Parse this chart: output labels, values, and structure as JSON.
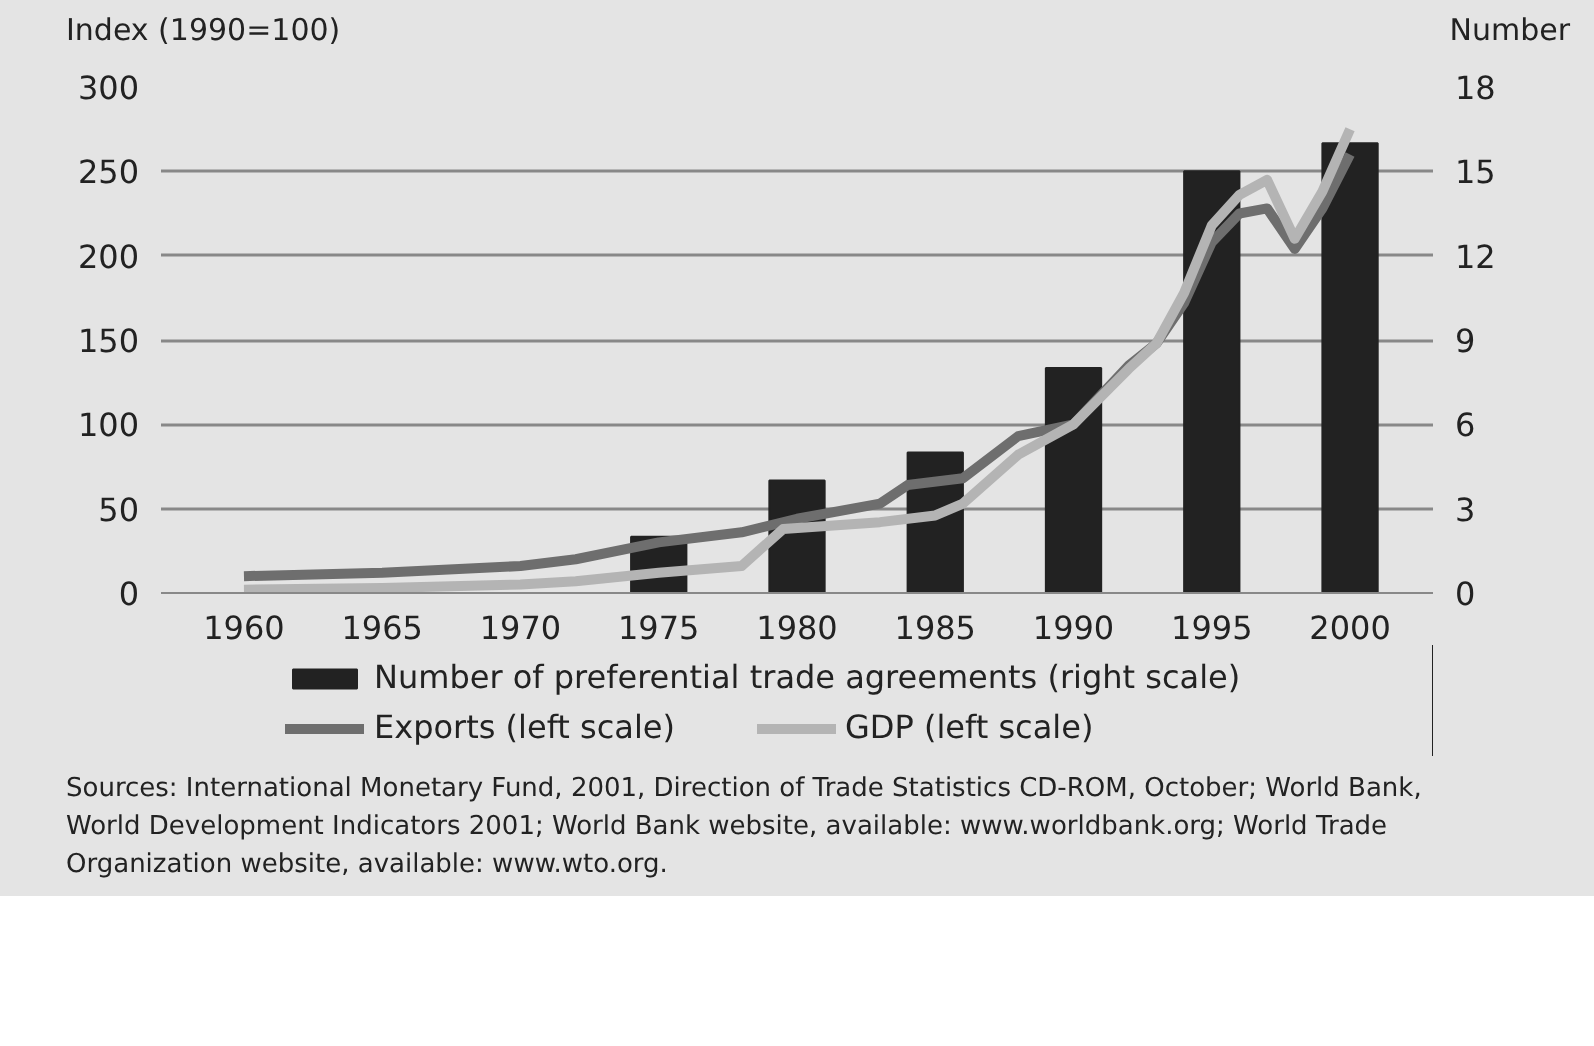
{
  "chart_data": {
    "type": "line",
    "ylabel": "Index (1990=100)",
    "y2label": "Number",
    "xlim": [
      1957,
      2003
    ],
    "xticks": [
      1960,
      1965,
      1970,
      1975,
      1980,
      1985,
      1990,
      1995,
      2000
    ],
    "ylim": [
      0,
      300
    ],
    "yticks": [
      0,
      50,
      100,
      150,
      200,
      250,
      300
    ],
    "y2lim": [
      0,
      18
    ],
    "y2ticks": [
      0,
      3,
      6,
      9,
      12,
      15,
      18
    ],
    "grid": "y",
    "legend": "bottom",
    "series": [
      {
        "name": "Number of preferential trade agreements (right scale)",
        "type": "bar",
        "axis": "y2",
        "color": "#222222",
        "x": [
          1975,
          1980,
          1985,
          1990,
          1995,
          2000
        ],
        "values": [
          2,
          4,
          5,
          8,
          15,
          16
        ]
      },
      {
        "name": "Exports (left scale)",
        "color": "#6e6e6e",
        "x": [
          1960,
          1965,
          1970,
          1972,
          1975,
          1978,
          1980,
          1983,
          1984,
          1986,
          1988,
          1990,
          1992,
          1993,
          1994,
          1995,
          1996,
          1997,
          1998,
          1999,
          2000
        ],
        "values": [
          10,
          12,
          16,
          20,
          30,
          36,
          44,
          53,
          64,
          68,
          93,
          100,
          135,
          148,
          172,
          208,
          225,
          228,
          204,
          228,
          260
        ]
      },
      {
        "name": "GDP (left scale)",
        "color": "#b4b4b4",
        "x": [
          1960,
          1965,
          1970,
          1972,
          1975,
          1978,
          1979.5,
          1983,
          1985,
          1986,
          1988,
          1990,
          1992,
          1993,
          1994,
          1995,
          1996,
          1997,
          1998,
          1999,
          2000
        ],
        "values": [
          2,
          3,
          5,
          7,
          12,
          16,
          38,
          42,
          46,
          53,
          82,
          100,
          133,
          148,
          178,
          218,
          236,
          245,
          210,
          238,
          275
        ]
      }
    ],
    "annotations": [
      "Sources: International Monetary Fund, 2001, Direction of Trade Statistics CD-ROM, October; World Bank, World Development Indicators 2001; World Bank website, available: www.worldbank.org; World Trade Organization website, available: www.wto.org."
    ]
  }
}
